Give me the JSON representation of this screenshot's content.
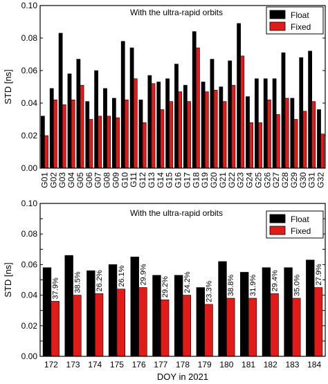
{
  "chart_data": [
    {
      "type": "bar",
      "title": "With the ultra-rapid orbits",
      "xlabel": "",
      "ylabel": "STD [ns]",
      "ylim": [
        0,
        0.1
      ],
      "yticks": [
        "0.00",
        "0.02",
        "0.04",
        "0.06",
        "0.08",
        "0.10"
      ],
      "legend_position": "top-right",
      "categories": [
        "G01",
        "G02",
        "G03",
        "G04",
        "G05",
        "G06",
        "G07",
        "G08",
        "G09",
        "G10",
        "G11",
        "G12",
        "G13",
        "G14",
        "G15",
        "G16",
        "G17",
        "G18",
        "G19",
        "G20",
        "G21",
        "G22",
        "G23",
        "G24",
        "G25",
        "G26",
        "G27",
        "G28",
        "G29",
        "G30",
        "G31",
        "G32"
      ],
      "series": [
        {
          "name": "Float",
          "color": "#000000",
          "values": [
            0.032,
            0.049,
            0.083,
            0.058,
            0.067,
            0.041,
            0.06,
            0.049,
            0.043,
            0.078,
            0.074,
            0.042,
            0.057,
            0.053,
            0.055,
            0.064,
            0.051,
            0.084,
            0.053,
            0.067,
            0.05,
            0.066,
            0.089,
            0.044,
            0.055,
            0.055,
            0.055,
            0.071,
            0.043,
            0.068,
            0.072,
            0.036
          ]
        },
        {
          "name": "Fixed",
          "color": "#e11a1a",
          "values": [
            0.02,
            0.042,
            0.039,
            0.042,
            0.051,
            0.03,
            0.032,
            0.032,
            0.031,
            0.042,
            0.055,
            0.028,
            0.052,
            0.036,
            0.041,
            0.047,
            0.041,
            0.074,
            0.047,
            0.048,
            0.041,
            0.051,
            0.069,
            0.028,
            0.028,
            0.042,
            0.033,
            0.043,
            0.03,
            0.035,
            0.041,
            0.021
          ]
        }
      ]
    },
    {
      "type": "bar",
      "title": "With the ultra-rapid orbits",
      "xlabel": "DOY in 2021",
      "ylabel": "STD [ns]",
      "ylim": [
        0,
        0.1
      ],
      "yticks": [
        "0.00",
        "0.01",
        "0.02",
        "0.03",
        "0.04",
        "0.05",
        "0.06",
        "0.07",
        "0.08",
        "0.09",
        "0.10"
      ],
      "legend_position": "top-right",
      "categories": [
        "172",
        "173",
        "174",
        "175",
        "176",
        "177",
        "178",
        "179",
        "180",
        "181",
        "182",
        "183",
        "184"
      ],
      "series": [
        {
          "name": "Float",
          "color": "#000000",
          "values": [
            0.058,
            0.066,
            0.056,
            0.06,
            0.065,
            0.053,
            0.053,
            0.045,
            0.062,
            0.055,
            0.058,
            0.058,
            0.063
          ]
        },
        {
          "name": "Fixed",
          "color": "#e11a1a",
          "values": [
            0.036,
            0.04,
            0.041,
            0.044,
            0.045,
            0.037,
            0.04,
            0.034,
            0.038,
            0.038,
            0.041,
            0.038,
            0.045
          ]
        }
      ],
      "bar_labels": [
        "37.9%",
        "38.5%",
        "26.2%",
        "26.1%",
        "29.9%",
        "29.2%",
        "24.2%",
        "23.3%",
        "38.8%",
        "31.9%",
        "29.4%",
        "35.0%",
        "27.9%"
      ]
    }
  ]
}
